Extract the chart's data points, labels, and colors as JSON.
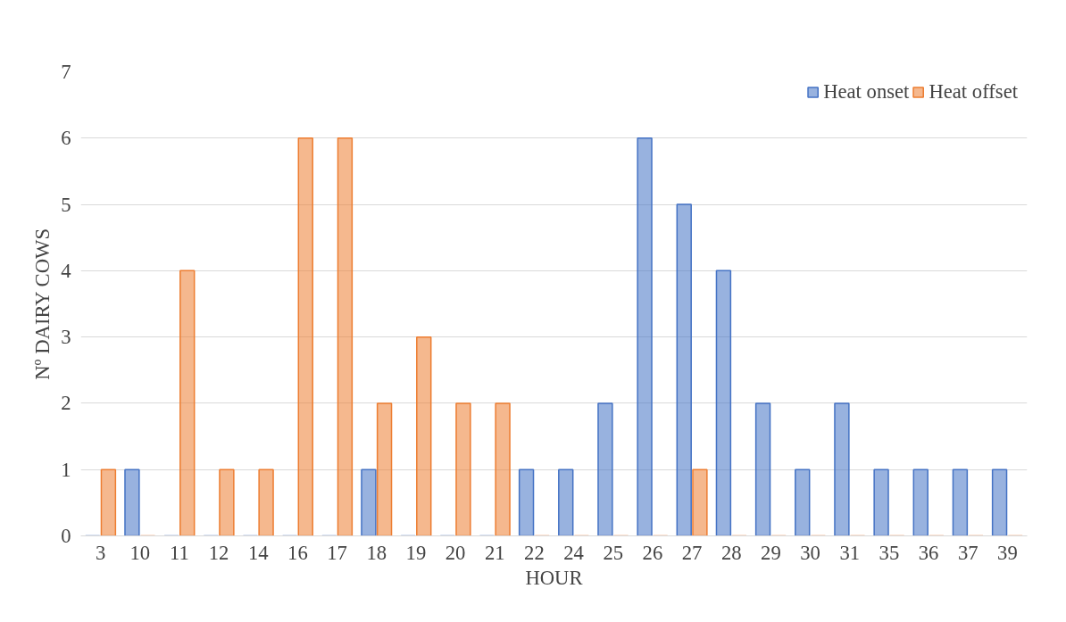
{
  "chart_data": {
    "type": "bar",
    "xlabel": "HOUR",
    "ylabel": "Nº DAIRY COWS",
    "categories": [
      "3",
      "10",
      "11",
      "12",
      "14",
      "16",
      "17",
      "18",
      "19",
      "20",
      "21",
      "22",
      "24",
      "25",
      "26",
      "27",
      "28",
      "29",
      "30",
      "31",
      "35",
      "36",
      "37",
      "39"
    ],
    "series": [
      {
        "name": "Heat onset",
        "color": "#4472c4",
        "values": [
          0,
          1,
          0,
          0,
          0,
          0,
          0,
          1,
          0,
          0,
          0,
          1,
          1,
          2,
          6,
          5,
          4,
          2,
          1,
          2,
          1,
          1,
          1,
          1
        ]
      },
      {
        "name": "Heat offset",
        "color": "#ed7d31",
        "values": [
          1,
          0,
          4,
          1,
          1,
          6,
          6,
          2,
          3,
          2,
          2,
          0,
          0,
          0,
          0,
          1,
          0,
          0,
          0,
          0,
          0,
          0,
          0,
          0
        ]
      }
    ],
    "ylim": [
      0,
      7
    ],
    "yticks": [
      0,
      1,
      2,
      3,
      4,
      5,
      6,
      7
    ],
    "grid": "y",
    "legend": "top right"
  }
}
